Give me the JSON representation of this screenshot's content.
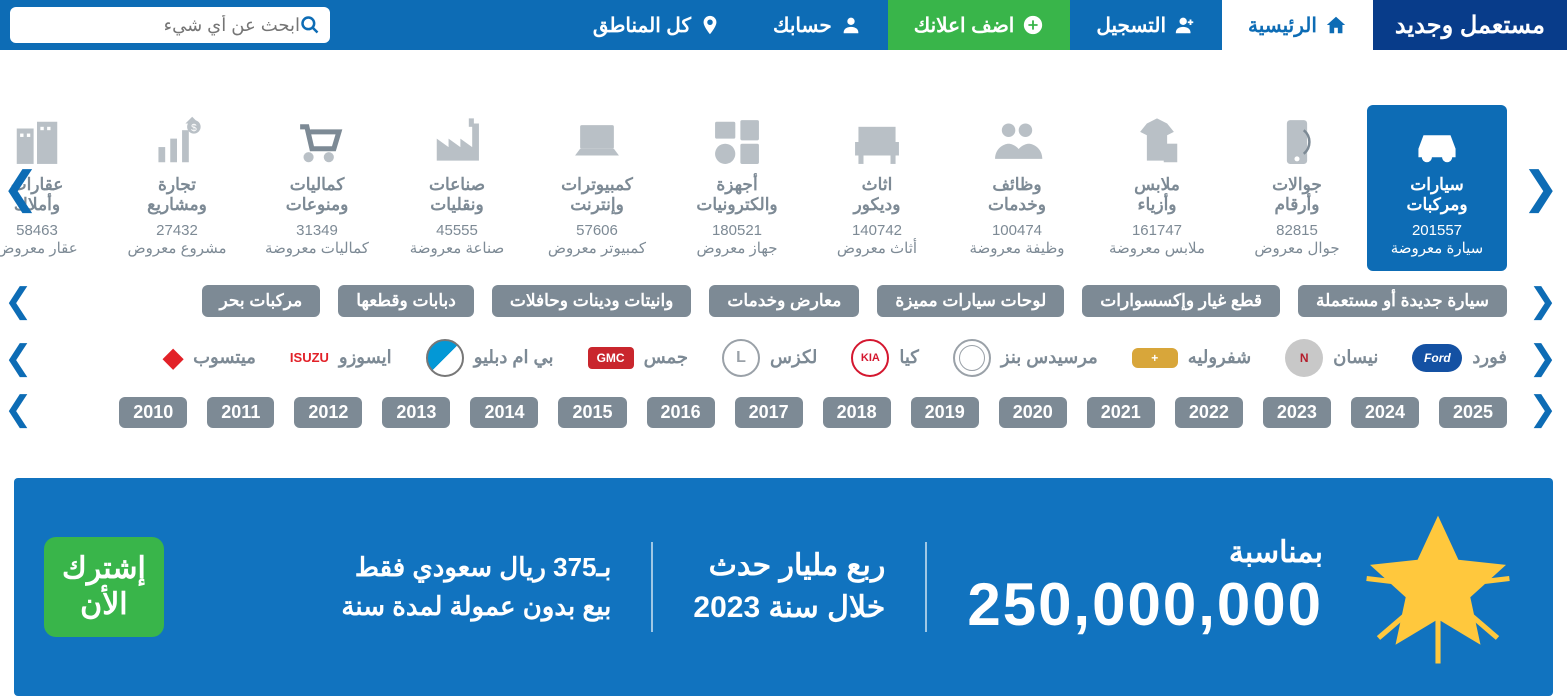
{
  "brand_name": "مستعمل وجديد",
  "nav": {
    "home": "الرئيسية",
    "register": "التسجيل",
    "add_ad": "اضف اعلانك",
    "account": "حسابك",
    "regions": "كل المناطق"
  },
  "search": {
    "placeholder": "ابحث عن أي شيء"
  },
  "cats": [
    {
      "key": "cars",
      "t1": "سيارات",
      "t2": "ومركبات",
      "n": "201557",
      "u": "سيارة معروضة"
    },
    {
      "key": "phones",
      "t1": "جوالات",
      "t2": "وأرقام",
      "n": "82815",
      "u": "جوال معروض"
    },
    {
      "key": "clothes",
      "t1": "ملابس",
      "t2": "وأزياء",
      "n": "161747",
      "u": "ملابس معروضة"
    },
    {
      "key": "jobs",
      "t1": "وظائف",
      "t2": "وخدمات",
      "n": "100474",
      "u": "وظيفة معروضة"
    },
    {
      "key": "furniture",
      "t1": "اثاث",
      "t2": "وديكور",
      "n": "140742",
      "u": "أثاث معروض"
    },
    {
      "key": "electronics",
      "t1": "أجهزة",
      "t2": "والكترونيات",
      "n": "180521",
      "u": "جهاز معروض"
    },
    {
      "key": "computers",
      "t1": "كمبيوترات",
      "t2": "وإنترنت",
      "n": "57606",
      "u": "كمبيوتر معروض"
    },
    {
      "key": "industry",
      "t1": "صناعات",
      "t2": "ونقليات",
      "n": "45555",
      "u": "صناعة معروضة"
    },
    {
      "key": "misc",
      "t1": "كماليات",
      "t2": "ومنوعات",
      "n": "31349",
      "u": "كماليات معروضة"
    },
    {
      "key": "business",
      "t1": "تجارة",
      "t2": "ومشاريع",
      "n": "27432",
      "u": "مشروع معروض"
    },
    {
      "key": "realestate",
      "t1": "عقارات",
      "t2": "وأملاك",
      "n": "58463",
      "u": "عقار معروض"
    }
  ],
  "subcats": [
    "سيارة جديدة أو مستعملة",
    "قطع غيار وإكسسوارات",
    "لوحات سيارات مميزة",
    "معارض وخدمات",
    "وانيتات ودينات وحافلات",
    "دبابات وقطعها",
    "مركبات بحر"
  ],
  "car_brands": [
    {
      "k": "ford",
      "ar": "فورد",
      "cls": "ford",
      "txt": "Ford"
    },
    {
      "k": "nissan",
      "ar": "نيسان",
      "cls": "nissan",
      "txt": "N"
    },
    {
      "k": "chev",
      "ar": "شفروليه",
      "cls": "chev",
      "txt": "+"
    },
    {
      "k": "merc",
      "ar": "مرسيدس بنز",
      "cls": "merc",
      "txt": ""
    },
    {
      "k": "kia",
      "ar": "كيا",
      "cls": "kia",
      "txt": "KIA"
    },
    {
      "k": "lexus",
      "ar": "لكزس",
      "cls": "lexus",
      "txt": "L"
    },
    {
      "k": "gmc",
      "ar": "جمس",
      "cls": "gmc",
      "txt": "GMC"
    },
    {
      "k": "bmw",
      "ar": "بي ام دبليو",
      "cls": "bmw",
      "txt": ""
    },
    {
      "k": "isuzu",
      "ar": "ايسوزو",
      "cls": "isuzu",
      "txt": "ISUZU"
    },
    {
      "k": "mits",
      "ar": "ميتسوب",
      "cls": "mits",
      "txt": "◆"
    }
  ],
  "years": [
    "2025",
    "2024",
    "2023",
    "2022",
    "2021",
    "2020",
    "2019",
    "2018",
    "2017",
    "2016",
    "2015",
    "2014",
    "2013",
    "2012",
    "2011",
    "2010"
  ],
  "promo": {
    "l1": "بمناسبة",
    "l2": "250,000,000",
    "c2a": "ربع مليار حدث",
    "c2b": "خلال سنة 2023",
    "c3a": "بـ375 ريال سعودي فقط",
    "c3b": "بيع بدون عمولة لمدة سنة",
    "cta1": "إشترك",
    "cta2": "الأن"
  },
  "colors": {
    "primary": "#0d6cb5",
    "dark": "#083c8a",
    "green": "#39b54a",
    "grey": "#7d8a95",
    "icon": "#b9c0c6",
    "star": "#ffc83d"
  }
}
